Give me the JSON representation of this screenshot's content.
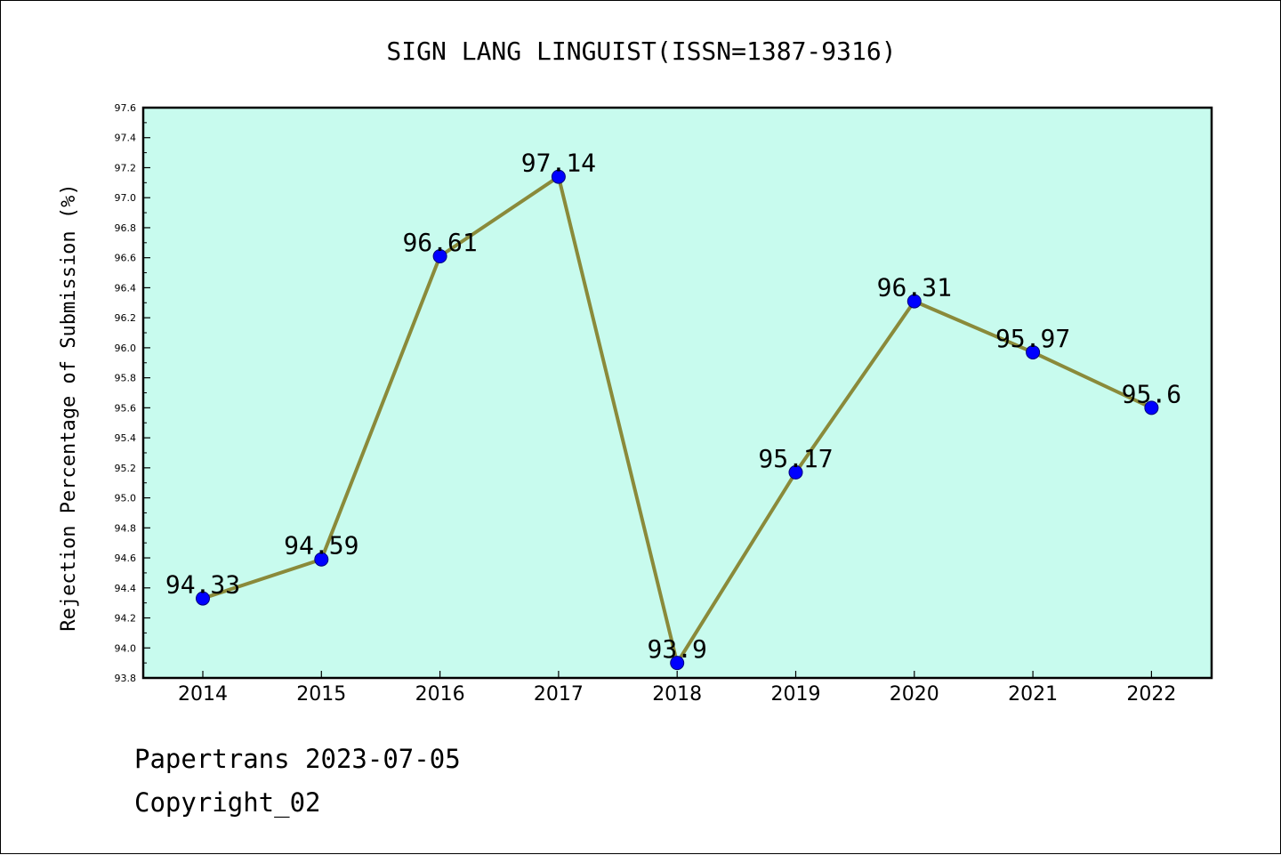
{
  "chart_data": {
    "type": "line",
    "title": "SIGN LANG LINGUIST(ISSN=1387-9316)",
    "xlabel": "",
    "ylabel": "Rejection Percentage of Submission (%)",
    "categories": [
      "2014",
      "2015",
      "2016",
      "2017",
      "2018",
      "2019",
      "2020",
      "2021",
      "2022"
    ],
    "series": [
      {
        "values": [
          94.33,
          94.59,
          96.61,
          97.14,
          93.9,
          95.17,
          96.31,
          95.97,
          95.6
        ],
        "labels": [
          "94.33",
          "94.59",
          "96.61",
          "97.14",
          "93.9",
          "95.17",
          "96.31",
          "95.97",
          "95.6"
        ]
      }
    ],
    "ylim": [
      93.8,
      97.6
    ],
    "yticks": [
      "93.8",
      "94.0",
      "94.2",
      "94.4",
      "94.6",
      "94.8",
      "95.0",
      "95.2",
      "95.4",
      "95.6",
      "95.8",
      "96.0",
      "96.2",
      "96.4",
      "96.6",
      "96.8",
      "97.0",
      "97.2",
      "97.4",
      "97.6"
    ],
    "grid": false,
    "legend": "none",
    "colors": {
      "plot_background": "#c8fbee",
      "line": "#8a8a3a",
      "marker": "#0000ff",
      "marker_edge": "#00007a"
    }
  },
  "footer": {
    "line1": "Papertrans 2023-07-05",
    "line2": "Copyright_02"
  }
}
